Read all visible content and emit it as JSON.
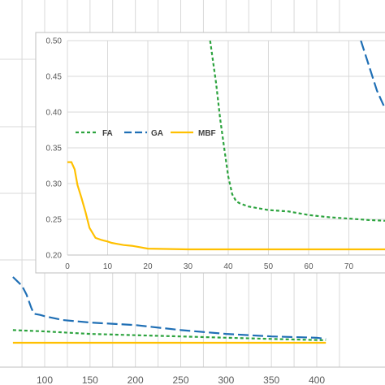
{
  "colors": {
    "FA": "#2ca33e",
    "GA": "#1f6fb5",
    "MBF": "#ffc000",
    "grid": "#d9d9d9",
    "frame": "#bfbfbf"
  },
  "chart_data": [
    {
      "id": "main",
      "type": "line",
      "title": "",
      "xlabel": "",
      "ylabel": "",
      "grid": true,
      "x_ticks": [
        100,
        150,
        200,
        250,
        300,
        350,
        400
      ],
      "xlim": [
        65,
        410
      ],
      "ylim": [
        0.2,
        0.5
      ],
      "series": [
        {
          "name": "FA",
          "points": [
            [
              65,
              0.222
            ],
            [
              100,
              0.221
            ],
            [
              150,
              0.219
            ],
            [
              200,
              0.218
            ],
            [
              250,
              0.217
            ],
            [
              300,
              0.216
            ],
            [
              350,
              0.215
            ],
            [
              410,
              0.214
            ]
          ]
        },
        {
          "name": "GA",
          "points": [
            [
              65,
              0.264
            ],
            [
              75,
              0.257
            ],
            [
              80,
              0.25
            ],
            [
              85,
              0.24
            ],
            [
              88,
              0.235
            ],
            [
              95,
              0.234
            ],
            [
              100,
              0.233
            ],
            [
              120,
              0.23
            ],
            [
              150,
              0.228
            ],
            [
              200,
              0.226
            ],
            [
              250,
              0.222
            ],
            [
              300,
              0.219
            ],
            [
              350,
              0.217
            ],
            [
              400,
              0.216
            ],
            [
              410,
              0.215
            ]
          ]
        },
        {
          "name": "MBF",
          "points": [
            [
              65,
              0.212
            ],
            [
              410,
              0.212
            ]
          ]
        }
      ]
    },
    {
      "id": "inset",
      "type": "line",
      "title": "",
      "xlabel": "",
      "ylabel": "",
      "grid": true,
      "legend": "top-left",
      "x_ticks": [
        0,
        10,
        20,
        30,
        40,
        50,
        60,
        70
      ],
      "y_ticks": [
        "0.20",
        "0.25",
        "0.30",
        "0.35",
        "0.40",
        "0.45",
        "0.50"
      ],
      "xlim": [
        0,
        79
      ],
      "ylim": [
        0.2,
        0.5
      ],
      "series": [
        {
          "name": "FA",
          "points": [
            [
              35.5,
              0.5
            ],
            [
              37,
              0.44
            ],
            [
              38,
              0.39
            ],
            [
              39,
              0.35
            ],
            [
              40,
              0.31
            ],
            [
              41,
              0.285
            ],
            [
              42,
              0.275
            ],
            [
              43,
              0.272
            ],
            [
              45,
              0.268
            ],
            [
              50,
              0.263
            ],
            [
              55,
              0.261
            ],
            [
              60,
              0.256
            ],
            [
              65,
              0.253
            ],
            [
              70,
              0.251
            ],
            [
              75,
              0.249
            ],
            [
              79,
              0.248
            ]
          ]
        },
        {
          "name": "GA",
          "points": [
            [
              73,
              0.5
            ],
            [
              75,
              0.465
            ],
            [
              77,
              0.43
            ],
            [
              79,
              0.405
            ]
          ]
        },
        {
          "name": "MBF",
          "points": [
            [
              0,
              0.33
            ],
            [
              1,
              0.33
            ],
            [
              1.8,
              0.32
            ],
            [
              2.5,
              0.298
            ],
            [
              3.5,
              0.28
            ],
            [
              4.5,
              0.26
            ],
            [
              5.5,
              0.238
            ],
            [
              7,
              0.224
            ],
            [
              8.5,
              0.221
            ],
            [
              10,
              0.219
            ],
            [
              11,
              0.217
            ],
            [
              12,
              0.216
            ],
            [
              14,
              0.214
            ],
            [
              16,
              0.213
            ],
            [
              18,
              0.211
            ],
            [
              20,
              0.209
            ],
            [
              30,
              0.208
            ],
            [
              79,
              0.208
            ]
          ]
        }
      ]
    }
  ]
}
